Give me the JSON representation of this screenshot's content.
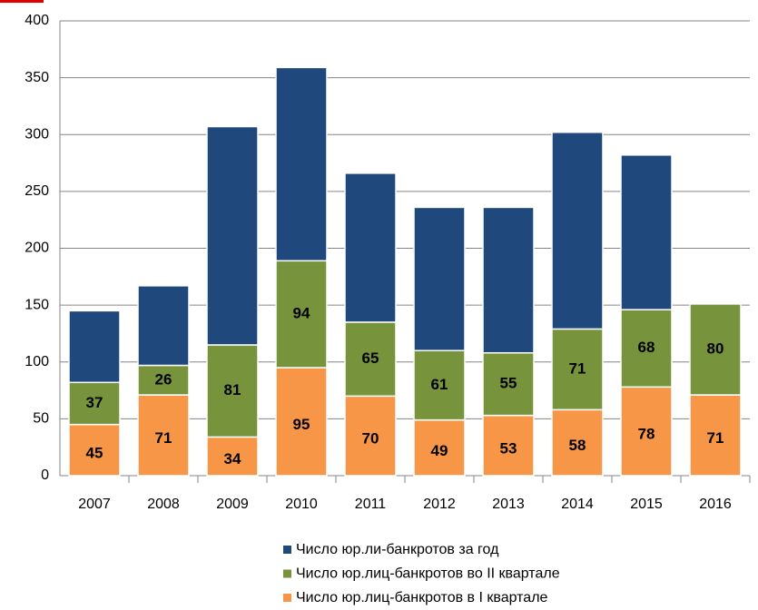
{
  "chart_data": {
    "type": "stacked_bar",
    "categories": [
      "2007",
      "2008",
      "2009",
      "2010",
      "2011",
      "2012",
      "2013",
      "2014",
      "2015",
      "2016"
    ],
    "series": [
      {
        "name": "Число юр.лиц-банкротов в I квартале",
        "color": "#f79646",
        "values": [
          45,
          71,
          34,
          95,
          70,
          49,
          53,
          58,
          78,
          71
        ]
      },
      {
        "name": "Число юр.лиц-банкротов во II квартале",
        "color": "#77933c",
        "values": [
          37,
          26,
          81,
          94,
          65,
          61,
          55,
          71,
          68,
          80
        ]
      },
      {
        "name": "Число юр.ли-банкротов за год",
        "color": "#1f497d",
        "values": [
          63,
          70,
          192,
          170,
          131,
          126,
          128,
          173,
          136,
          null
        ]
      }
    ],
    "ylim": [
      0,
      400
    ],
    "yticks": [
      0,
      50,
      100,
      150,
      200,
      250,
      300,
      350,
      400
    ],
    "grid": true,
    "legend": "bottom"
  }
}
